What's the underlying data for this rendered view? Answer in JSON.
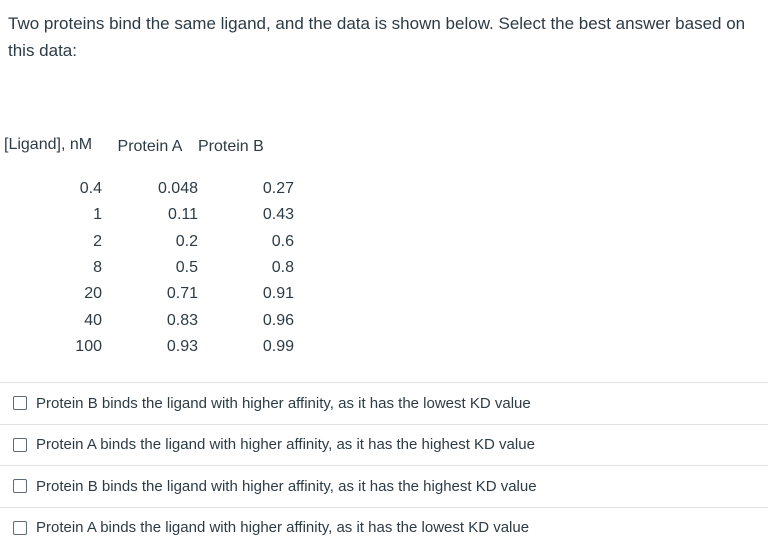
{
  "question": {
    "text": "Two proteins bind the same ligand, and the data is shown below. Select the best answer based on this data:"
  },
  "table": {
    "headers": [
      "[Ligand], nM",
      "Protein A",
      "Protein B"
    ],
    "rows": [
      [
        "0.4",
        "0.048",
        "0.27"
      ],
      [
        "1",
        "0.11",
        "0.43"
      ],
      [
        "2",
        "0.2",
        "0.6"
      ],
      [
        "8",
        "0.5",
        "0.8"
      ],
      [
        "20",
        "0.71",
        "0.91"
      ],
      [
        "40",
        "0.83",
        "0.96"
      ],
      [
        "100",
        "0.93",
        "0.99"
      ]
    ]
  },
  "options": [
    {
      "label": "Protein B binds the ligand with higher affinity, as it has the lowest KD value",
      "checked": false
    },
    {
      "label": "Protein A binds the ligand with higher affinity, as it has the highest KD value",
      "checked": false
    },
    {
      "label": "Protein B binds the ligand with higher affinity, as it has the highest KD value",
      "checked": false
    },
    {
      "label": "Protein A binds the ligand with higher affinity, as it has the lowest KD value",
      "checked": false
    }
  ]
}
